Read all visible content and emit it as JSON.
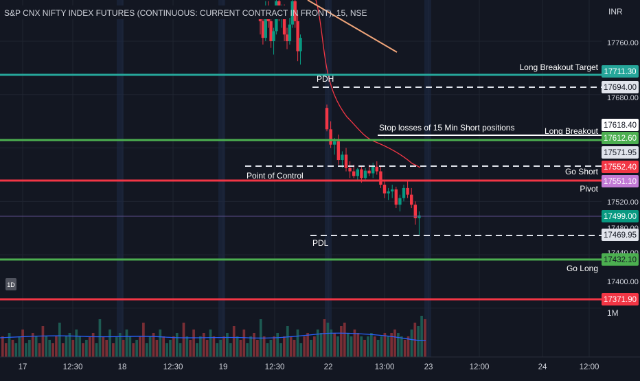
{
  "header": {
    "title": "S&P CNX NIFTY INDEX FUTURES (CONTINUOUS: CURRENT CONTRACT IN FRONT), 15, NSE",
    "currency": "INR"
  },
  "badge_1d": "1D",
  "volume_scale_label": "1M",
  "price_axis_labels": [
    "17760.00",
    "17680.00",
    "17520.00",
    "17400.00"
  ],
  "price_axis_ghost_labels": [
    "17480.00",
    "17440.00"
  ],
  "time_labels": [
    "17",
    "12:30",
    "18",
    "12:30",
    "19",
    "12:30",
    "22",
    "13:00",
    "23",
    "12:00",
    "24",
    "12:00"
  ],
  "levels": [
    {
      "name": "Long Breakout Target",
      "price": "17711.30",
      "color": "#26a69a",
      "text_color": "#ffffff",
      "style": "solid"
    },
    {
      "name": "PDH",
      "price": "17694.00",
      "color": "#e0e3eb",
      "text_color": "#131722",
      "style": "dashed"
    },
    {
      "name": "Long Breakout",
      "price": "17618.40",
      "color": "#ffffff",
      "text_color": "#131722",
      "style": "solid"
    },
    {
      "name": "",
      "price": "17612.60",
      "color": "#4caf50",
      "text_color": "#ffffff",
      "style": "solid"
    },
    {
      "name": "",
      "price": "17571.95",
      "color": "#e0e3eb",
      "text_color": "#131722",
      "style": "none"
    },
    {
      "name": "Go Short",
      "price": "17552.40",
      "color": "#f23645",
      "text_color": "#ffffff",
      "style": "dashed"
    },
    {
      "name": "Pivot",
      "price": "17551.10",
      "color": "#c37ad6",
      "text_color": "#ffffff",
      "style": "solid"
    },
    {
      "name": "",
      "price": "17499.00",
      "color": "#089981",
      "text_color": "#ffffff",
      "style": "thin"
    },
    {
      "name": "PDL",
      "price": "17469.95",
      "color": "#e0e3eb",
      "text_color": "#131722",
      "style": "dashed"
    },
    {
      "name": "Go Long",
      "price": "17432.10",
      "color": "#4caf50",
      "text_color": "#131722",
      "style": "solid"
    },
    {
      "name": "",
      "price": "17371.90",
      "color": "#f23645",
      "text_color": "#ffffff",
      "style": "solid"
    }
  ],
  "annotations": {
    "pdh": "PDH",
    "pdl": "PDL",
    "point_of_control": "Point of Control",
    "stop_losses": "Stop losses of 15 Min Short positions",
    "long_breakout_target": "Long Breakout Target",
    "long_breakout": "Long Breakout",
    "go_short": "Go Short",
    "pivot": "Pivot",
    "go_long": "Go Long"
  },
  "colors": {
    "background": "#131722",
    "up": "#089981",
    "down": "#f23645",
    "vwap": "#f23645",
    "volume_ma": "#2962ff",
    "trendline": "#f0a57a"
  },
  "chart_data": {
    "type": "candlestick",
    "title": "S&P CNX NIFTY INDEX FUTURES (CONTINUOUS: CURRENT CONTRACT IN FRONT), 15, NSE",
    "y_unit": "INR",
    "visible_price_range": [
      17330,
      17830
    ],
    "candles_day_19_20": [
      [
        17800,
        17812,
        17770,
        17790
      ],
      [
        17790,
        17800,
        17755,
        17765
      ],
      [
        17765,
        17820,
        17760,
        17805
      ],
      [
        17805,
        17820,
        17780,
        17790
      ],
      [
        17790,
        17800,
        17750,
        17760
      ],
      [
        17760,
        17780,
        17740,
        17775
      ],
      [
        17775,
        17830,
        17770,
        17820
      ],
      [
        17820,
        17830,
        17790,
        17800
      ],
      [
        17800,
        17815,
        17780,
        17810
      ],
      [
        17810,
        17815,
        17760,
        17770
      ],
      [
        17770,
        17780,
        17748,
        17760
      ],
      [
        17760,
        17795,
        17755,
        17785
      ],
      [
        17785,
        17830,
        17780,
        17820
      ],
      [
        17820,
        17828,
        17780,
        17790
      ],
      [
        17790,
        17800,
        17730,
        17745
      ],
      [
        17745,
        17770,
        17725,
        17765
      ]
    ],
    "candles_day_22": [
      [
        17660,
        17665,
        17625,
        17628
      ],
      [
        17628,
        17640,
        17600,
        17605
      ],
      [
        17605,
        17615,
        17590,
        17610
      ],
      [
        17610,
        17620,
        17575,
        17582
      ],
      [
        17582,
        17595,
        17570,
        17590
      ],
      [
        17590,
        17600,
        17565,
        17570
      ],
      [
        17570,
        17580,
        17555,
        17565
      ],
      [
        17565,
        17575,
        17555,
        17558
      ],
      [
        17558,
        17570,
        17552,
        17568
      ],
      [
        17568,
        17572,
        17548,
        17555
      ],
      [
        17555,
        17570,
        17550,
        17566
      ],
      [
        17566,
        17575,
        17558,
        17562
      ],
      [
        17562,
        17578,
        17555,
        17572
      ],
      [
        17572,
        17580,
        17560,
        17565
      ],
      [
        17565,
        17572,
        17540,
        17545
      ],
      [
        17545,
        17552,
        17525,
        17532
      ],
      [
        17532,
        17540,
        17522,
        17535
      ],
      [
        17535,
        17545,
        17525,
        17538
      ],
      [
        17538,
        17542,
        17510,
        17515
      ],
      [
        17515,
        17530,
        17505,
        17525
      ],
      [
        17525,
        17545,
        17520,
        17540
      ],
      [
        17540,
        17552,
        17525,
        17530
      ],
      [
        17530,
        17540,
        17510,
        17515
      ],
      [
        17515,
        17520,
        17485,
        17495
      ],
      [
        17495,
        17505,
        17470,
        17499
      ]
    ],
    "volume": [
      0.3,
      0.2,
      0.35,
      0.25,
      0.2,
      0.3,
      0.4,
      0.2,
      0.25,
      0.35,
      0.3,
      0.2,
      0.45,
      0.3,
      0.25,
      0.2,
      0.3,
      0.5,
      0.2,
      0.3,
      0.35,
      0.25,
      0.4,
      0.3,
      0.2,
      0.25,
      0.3,
      0.35,
      0.2,
      0.55,
      0.3,
      0.25,
      0.4,
      0.2,
      0.3,
      0.35,
      0.25,
      0.4,
      0.3,
      0.2,
      0.25,
      0.3,
      0.5,
      0.2,
      0.3,
      0.35,
      0.25,
      0.4,
      0.3,
      0.2,
      0.25,
      0.3,
      0.35,
      0.2,
      0.5,
      0.3,
      0.25,
      0.4,
      0.2,
      0.3,
      0.35,
      0.25,
      0.4,
      0.3,
      0.2,
      0.25,
      0.3,
      0.35,
      0.2,
      0.45,
      0.3,
      0.25,
      0.4,
      0.2,
      0.3,
      0.35,
      0.25,
      0.55,
      0.3,
      0.2,
      0.25,
      0.3,
      0.35,
      0.2,
      0.3,
      0.45,
      0.3,
      0.25,
      0.4,
      0.2,
      0.3,
      0.35,
      0.25,
      0.3,
      0.4,
      0.35,
      0.55,
      0.5,
      0.4,
      0.35,
      0.3,
      0.45,
      0.5,
      0.35,
      0.3,
      0.4,
      0.35,
      0.3,
      0.25,
      0.3,
      0.35,
      0.3,
      0.25,
      0.3,
      0.35,
      0.3,
      0.35,
      0.4,
      0.35,
      0.3,
      0.25,
      0.3,
      0.4,
      0.5,
      0.45,
      0.6,
      0.55
    ],
    "grid": true
  }
}
